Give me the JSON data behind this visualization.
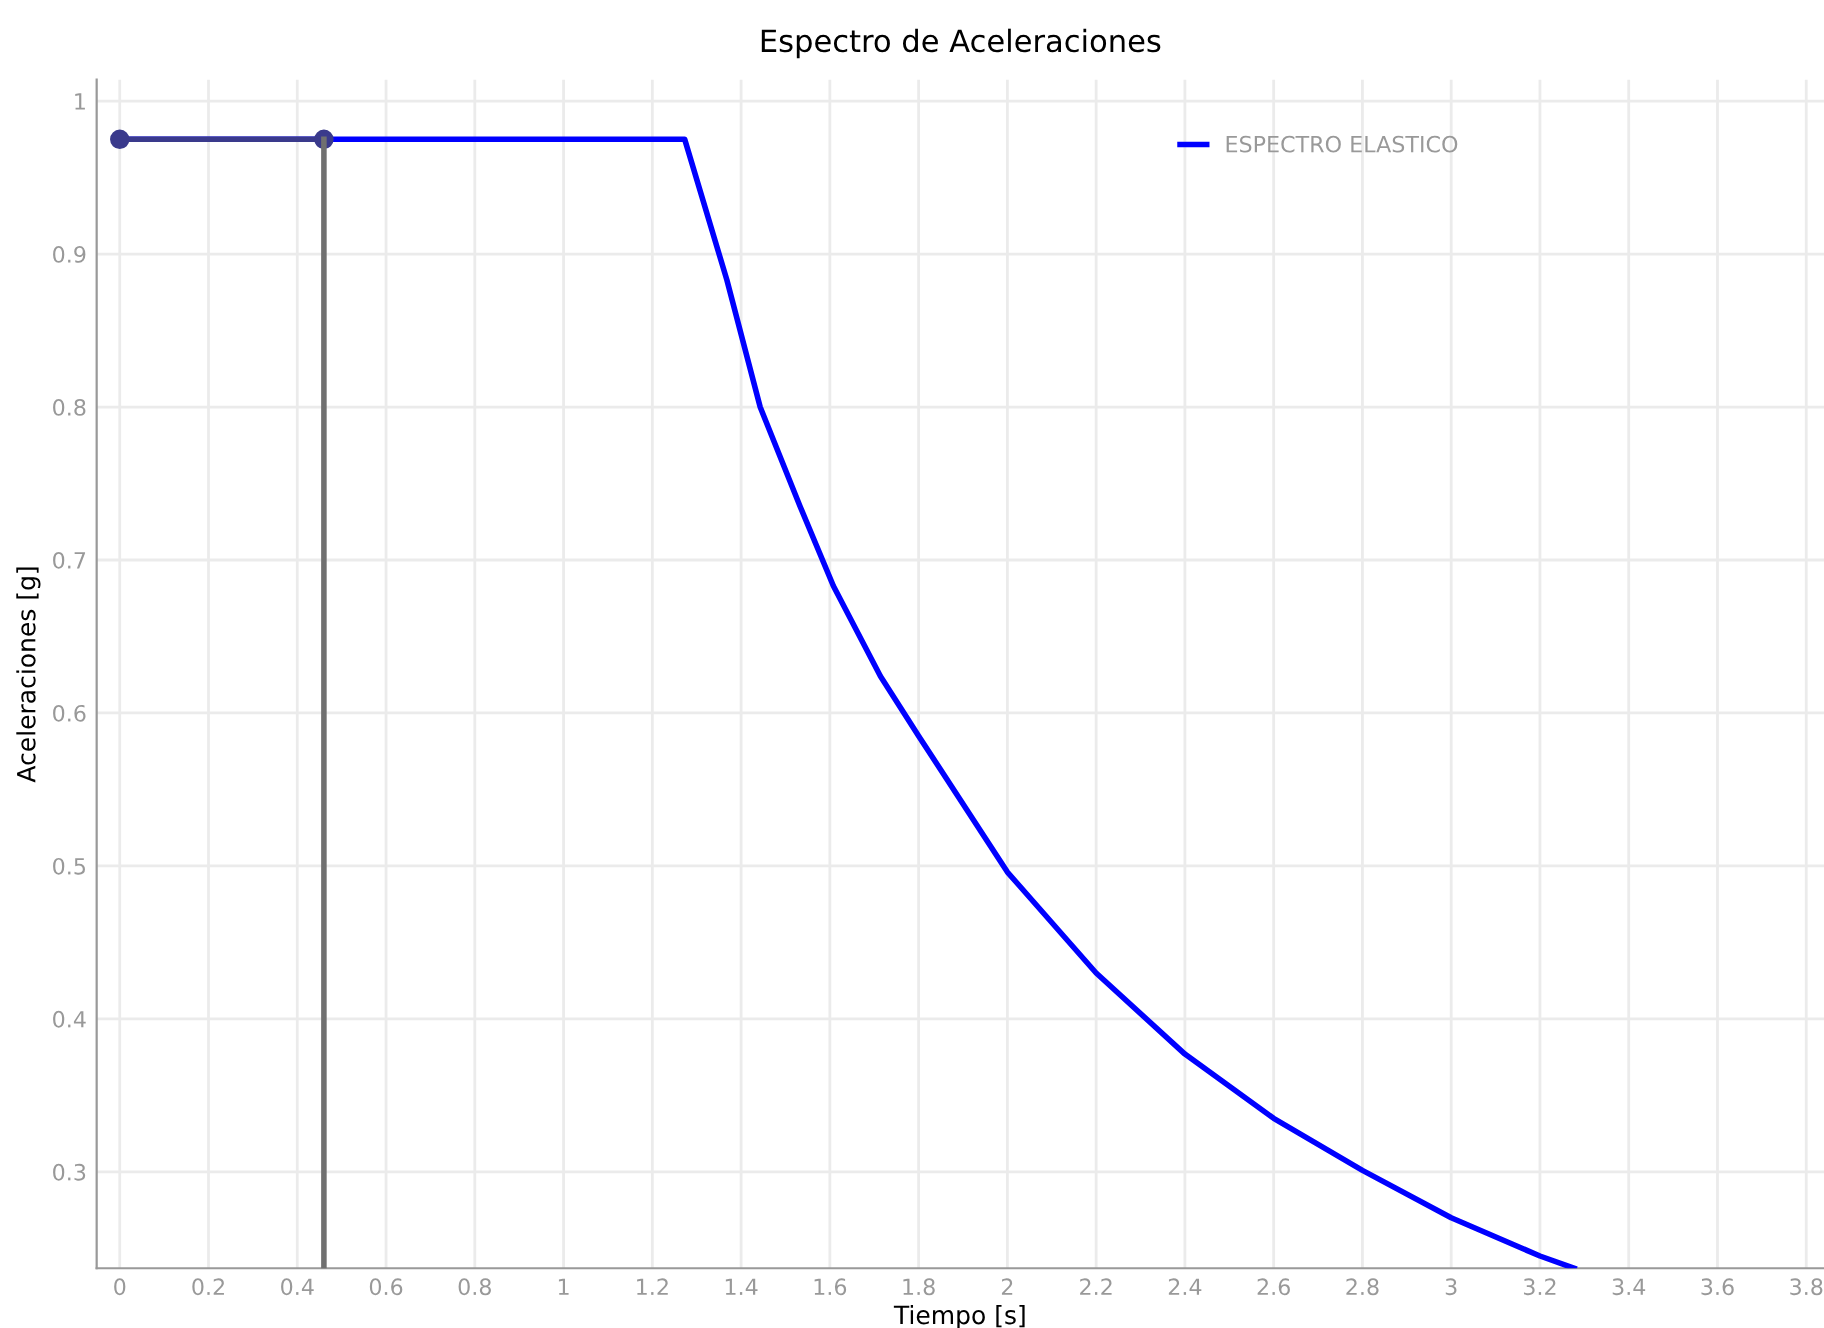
{
  "chart_data": {
    "type": "line",
    "title": "Espectro de Aceleraciones",
    "xlabel": "Tiempo [s]",
    "ylabel": "Aceleraciones [g]",
    "series": [
      {
        "name": "ESPECTRO ELASTICO",
        "color": "#0000ff",
        "x": [
          0,
          1.273,
          1.368,
          1.443,
          1.533,
          1.608,
          1.714,
          1.8,
          2,
          2.2,
          2.4,
          2.6,
          2.8,
          3,
          3.2,
          3.277
        ],
        "values": [
          0.975,
          0.975,
          0.883,
          0.8,
          0.735,
          0.683,
          0.624,
          0.585,
          0.496,
          0.43,
          0.377,
          0.335,
          0.301,
          0.27,
          0.245,
          0.237
        ]
      },
      {
        "color": "#3a3a8c",
        "marker": "circle",
        "x": [
          0,
          0.46
        ],
        "values": [
          0.975,
          0.975
        ]
      },
      {
        "color": "#707070",
        "x": [
          0.46,
          0.46
        ],
        "values": [
          0.237,
          0.975
        ]
      }
    ],
    "xlim": [
      -0.052,
      3.84
    ],
    "ylim": [
      0.237,
      1.014
    ],
    "xticks": [
      0,
      0.2,
      0.4,
      0.6,
      0.8,
      1,
      1.2,
      1.4,
      1.6,
      1.8,
      2,
      2.2,
      2.4,
      2.6,
      2.8,
      3,
      3.2,
      3.4,
      3.6,
      3.8
    ],
    "yticks": [
      0.3,
      0.4,
      0.5,
      0.6,
      0.7,
      0.8,
      0.9,
      1
    ],
    "grid": true,
    "legend": "top right"
  }
}
